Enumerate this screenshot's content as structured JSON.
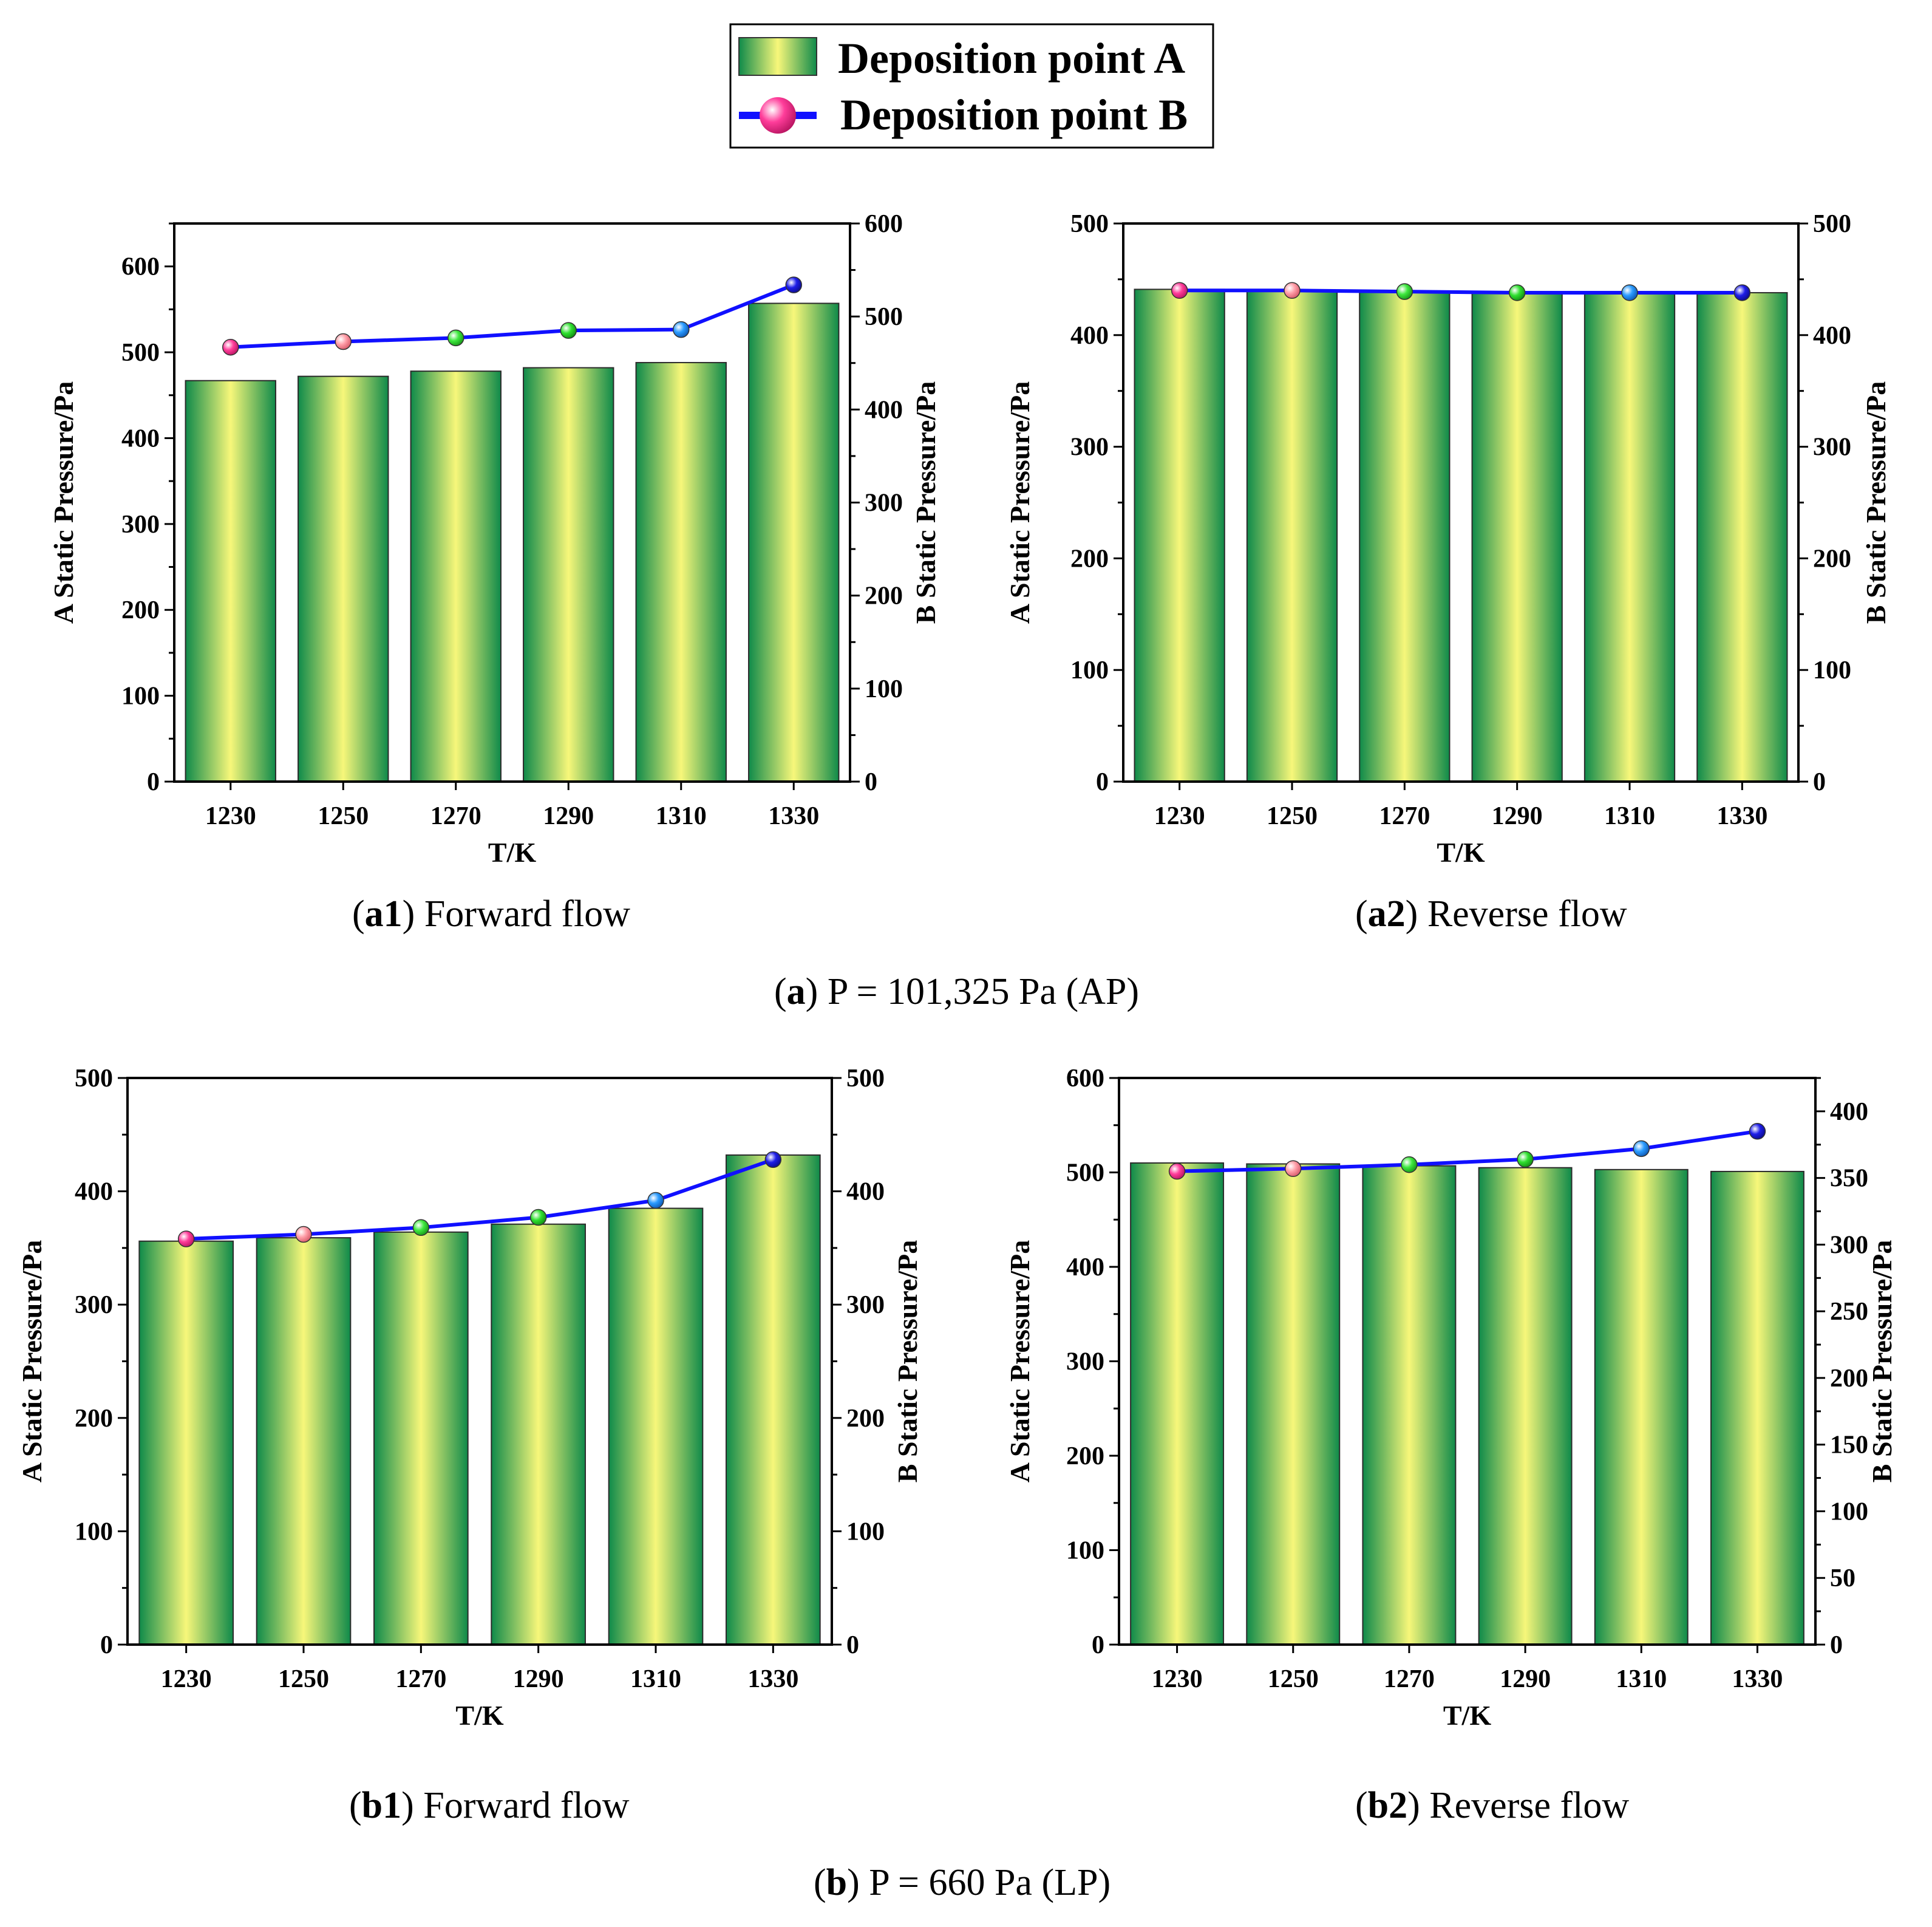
{
  "legend": {
    "series_a": "Deposition point A",
    "series_b": "Deposition point B"
  },
  "colors": {
    "bar_edge": "#0f8a4a",
    "bar_mid": "#f7f77a",
    "line": "#1010ff",
    "marker_colors": [
      "#ff3d9a",
      "#ff9ea8",
      "#3ee83e",
      "#2fe02f",
      "#2a9bff",
      "#1e1ee8"
    ]
  },
  "captions": {
    "a1": {
      "tag": "a1",
      "text": " Forward flow"
    },
    "a2": {
      "tag": "a2",
      "text": " Reverse flow"
    },
    "a": {
      "tag": "a",
      "text": " P = 101,325 Pa (AP)"
    },
    "b1": {
      "tag": "b1",
      "text": " Forward flow"
    },
    "b2": {
      "tag": "b2",
      "text": " Reverse flow"
    },
    "b": {
      "tag": "b",
      "text": " P = 660 Pa (LP)"
    }
  },
  "chart_data": [
    {
      "id": "a1",
      "type": "bar+line",
      "categories": [
        "1230",
        "1250",
        "1270",
        "1290",
        "1310",
        "1330"
      ],
      "series": [
        {
          "name": "Deposition point A",
          "axis": "left",
          "values": [
            467,
            472,
            478,
            482,
            488,
            557
          ]
        },
        {
          "name": "Deposition point B",
          "axis": "right",
          "values": [
            467,
            473,
            477,
            485,
            486,
            534
          ]
        }
      ],
      "xlabel": "T/K",
      "ylabel_left": "A Static Pressure/Pa",
      "ylabel_right": "B Static Pressure/Pa",
      "ylim_left": [
        0,
        650
      ],
      "yticks_left": [
        0,
        100,
        200,
        300,
        400,
        500,
        600
      ],
      "ylim_right": [
        0,
        600
      ],
      "yticks_right": [
        0,
        100,
        200,
        300,
        400,
        500,
        600
      ]
    },
    {
      "id": "a2",
      "type": "bar+line",
      "categories": [
        "1230",
        "1250",
        "1270",
        "1290",
        "1310",
        "1330"
      ],
      "series": [
        {
          "name": "Deposition point A",
          "axis": "left",
          "values": [
            441,
            440,
            439,
            438,
            438,
            438
          ]
        },
        {
          "name": "Deposition point B",
          "axis": "right",
          "values": [
            440,
            440,
            439,
            438,
            438,
            438
          ]
        }
      ],
      "xlabel": "T/K",
      "ylabel_left": "A Static Pressure/Pa",
      "ylabel_right": "B Static Pressure/Pa",
      "ylim_left": [
        0,
        500
      ],
      "yticks_left": [
        0,
        100,
        200,
        300,
        400,
        500
      ],
      "ylim_right": [
        0,
        500
      ],
      "yticks_right": [
        0,
        100,
        200,
        300,
        400,
        500
      ]
    },
    {
      "id": "b1",
      "type": "bar+line",
      "categories": [
        "1230",
        "1250",
        "1270",
        "1290",
        "1310",
        "1330"
      ],
      "series": [
        {
          "name": "Deposition point A",
          "axis": "left",
          "values": [
            356,
            359,
            364,
            371,
            385,
            432
          ]
        },
        {
          "name": "Deposition point B",
          "axis": "right",
          "values": [
            358,
            362,
            368,
            377,
            392,
            428
          ]
        }
      ],
      "xlabel": "T/K",
      "ylabel_left": "A Static Pressure/Pa",
      "ylabel_right": "B Static Pressure/Pa",
      "ylim_left": [
        0,
        500
      ],
      "yticks_left": [
        0,
        100,
        200,
        300,
        400,
        500
      ],
      "ylim_right": [
        0,
        500
      ],
      "yticks_right": [
        0,
        100,
        200,
        300,
        400,
        500
      ]
    },
    {
      "id": "b2",
      "type": "bar+line",
      "categories": [
        "1230",
        "1250",
        "1270",
        "1290",
        "1310",
        "1330"
      ],
      "series": [
        {
          "name": "Deposition point A",
          "axis": "left",
          "values": [
            510,
            509,
            507,
            505,
            503,
            501
          ]
        },
        {
          "name": "Deposition point B",
          "axis": "right",
          "values": [
            355,
            357,
            360,
            364,
            372,
            385
          ]
        }
      ],
      "xlabel": "T/K",
      "ylabel_left": "A Static Pressure/Pa",
      "ylabel_right": "B Static Pressure/Pa",
      "ylim_left": [
        0,
        600
      ],
      "yticks_left": [
        0,
        100,
        200,
        300,
        400,
        500,
        600
      ],
      "ylim_right": [
        0,
        425
      ],
      "yticks_right": [
        0,
        50,
        100,
        150,
        200,
        250,
        300,
        350,
        400
      ]
    }
  ]
}
